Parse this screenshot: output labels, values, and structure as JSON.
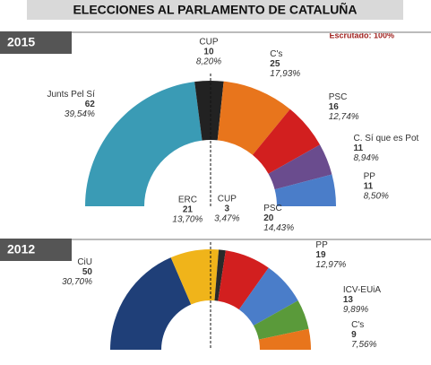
{
  "page": {
    "title": "ELECCIONES AL PARLAMENTO DE CATALUÑA",
    "note": "Escrutado: 100%"
  },
  "chart_data": [
    {
      "type": "half-donut",
      "title": "2015",
      "categories": [
        "Junts Pel Sí",
        "CUP",
        "C's",
        "PSC",
        "C. Sí que es Pot",
        "PP"
      ],
      "values": [
        62,
        10,
        25,
        16,
        11,
        11
      ],
      "percentages": [
        39.54,
        8.2,
        17.93,
        12.74,
        8.94,
        8.5
      ],
      "percentage_labels": [
        "39,54%",
        "8,20%",
        "17,93%",
        "12,74%",
        "8,94%",
        "8,50%"
      ],
      "colors": [
        "#3a9bb5",
        "#222222",
        "#e8751c",
        "#d21f1f",
        "#6a4c8e",
        "#4a7dc9"
      ]
    },
    {
      "type": "half-donut",
      "title": "2012",
      "categories": [
        "CiU",
        "ERC",
        "CUP",
        "PSC",
        "PP",
        "ICV-EUiA",
        "C's"
      ],
      "values": [
        50,
        21,
        3,
        20,
        19,
        13,
        9
      ],
      "percentages": [
        30.7,
        13.7,
        3.47,
        14.43,
        12.97,
        9.89,
        7.56
      ],
      "percentage_labels": [
        "30,70%",
        "13,70%",
        "3,47%",
        "14,43%",
        "12,97%",
        "9,89%",
        "7,56%"
      ],
      "colors": [
        "#1f3f78",
        "#f0b41a",
        "#2a2a2a",
        "#d21f1f",
        "#4a7dc9",
        "#5a9a3a",
        "#e8751c"
      ]
    }
  ]
}
